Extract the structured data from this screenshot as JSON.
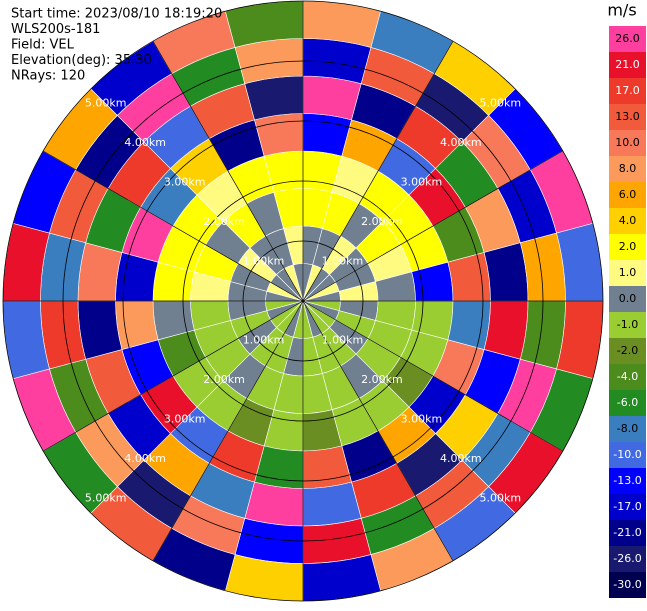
{
  "chart_data": {
    "type": "ppi",
    "annotations": [
      "Start time: 2023/08/10 18:19:20",
      "WLS200s-181",
      "Field: VEL",
      "Elevation(deg): 35.30",
      "NRays: 120"
    ],
    "azimuths": [
      0,
      15,
      30,
      45,
      60,
      75,
      90,
      105,
      120,
      135,
      150,
      165,
      180,
      195,
      210,
      225,
      240,
      255,
      270,
      285,
      300,
      315,
      330,
      345
    ],
    "range_edges": [
      0,
      0.625,
      1.25,
      1.875,
      2.5,
      3.125,
      3.75,
      4.375,
      5
    ],
    "values": [
      [
        0,
        0,
        2,
        2,
        -13,
        26,
        -17,
        8
      ],
      [
        1,
        0,
        2,
        1,
        6,
        -21,
        13,
        -8
      ],
      [
        0,
        1,
        0,
        2,
        -10,
        17,
        -26,
        4
      ],
      [
        0,
        0,
        2,
        2,
        21,
        -6,
        10,
        -13
      ],
      [
        1,
        0,
        1,
        2,
        -4,
        8,
        -17,
        26
      ],
      [
        0,
        1,
        0,
        -13,
        13,
        -21,
        6,
        -10
      ],
      [
        -1,
        0,
        -1,
        -1,
        -8,
        21,
        -4,
        17
      ],
      [
        0,
        -1,
        -1,
        -1,
        10,
        -13,
        26,
        -6
      ],
      [
        -1,
        0,
        -1,
        -2,
        -17,
        4,
        -8,
        21
      ],
      [
        -1,
        -1,
        0,
        -1,
        6,
        -26,
        13,
        -10
      ],
      [
        0,
        -1,
        -1,
        -1,
        -21,
        17,
        -6,
        8
      ],
      [
        -1,
        -1,
        -1,
        -2,
        13,
        -10,
        21,
        -17
      ],
      [
        -1,
        0,
        -1,
        -1,
        -6,
        26,
        -13,
        4
      ],
      [
        0,
        -1,
        -1,
        -2,
        17,
        -8,
        10,
        -21
      ],
      [
        -1,
        -1,
        0,
        -1,
        -10,
        6,
        -26,
        13
      ],
      [
        -1,
        0,
        -1,
        -1,
        21,
        -17,
        8,
        -6
      ],
      [
        0,
        -1,
        -1,
        -4,
        -13,
        13,
        -4,
        26
      ],
      [
        -1,
        0,
        -1,
        0,
        8,
        -21,
        17,
        -10
      ],
      [
        0,
        0,
        1,
        2,
        -17,
        10,
        -8,
        21
      ],
      [
        1,
        0,
        2,
        2,
        26,
        -6,
        13,
        -13
      ],
      [
        0,
        1,
        0,
        2,
        -8,
        17,
        -21,
        6
      ],
      [
        0,
        0,
        2,
        1,
        4,
        -10,
        26,
        -17
      ],
      [
        1,
        0,
        0,
        2,
        -21,
        13,
        -6,
        10
      ],
      [
        0,
        1,
        2,
        2,
        10,
        -26,
        8,
        -4
      ]
    ],
    "rings": [
      {
        "value": 1,
        "label": "1.00km"
      },
      {
        "value": 2,
        "label": "2.00km"
      },
      {
        "value": 3,
        "label": "3.00km"
      },
      {
        "value": 4,
        "label": "4.00km"
      },
      {
        "value": 5,
        "label": "5.00km"
      }
    ],
    "rlim": [
      0,
      5
    ],
    "colorbar_title": "m/s",
    "cticks": [
      {
        "value": 26,
        "label": "26.0"
      },
      {
        "value": 21,
        "label": "21.0"
      },
      {
        "value": 17,
        "label": "17.0"
      },
      {
        "value": 13,
        "label": "13.0"
      },
      {
        "value": 10,
        "label": "10.0"
      },
      {
        "value": 8,
        "label": "8.0"
      },
      {
        "value": 6,
        "label": "6.0"
      },
      {
        "value": 4,
        "label": "4.0"
      },
      {
        "value": 2,
        "label": "2.0"
      },
      {
        "value": 1,
        "label": "1.0"
      },
      {
        "value": 0,
        "label": "0.0"
      },
      {
        "value": -1,
        "label": "-1.0"
      },
      {
        "value": -2,
        "label": "-2.0"
      },
      {
        "value": -4,
        "label": "-4.0"
      },
      {
        "value": -6,
        "label": "-6.0"
      },
      {
        "value": -8,
        "label": "-8.0"
      },
      {
        "value": -10,
        "label": "-10.0"
      },
      {
        "value": -13,
        "label": "-13.0"
      },
      {
        "value": -17,
        "label": "-17.0"
      },
      {
        "value": -21,
        "label": "-21.0"
      },
      {
        "value": -26,
        "label": "-26.0"
      },
      {
        "value": -30,
        "label": "-30.0"
      }
    ],
    "colors": [
      "#ff3fa0",
      "#e8102a",
      "#ee3a2a",
      "#f25a3c",
      "#f8785a",
      "#fb9a5a",
      "#ffa500",
      "#ffd000",
      "#ffff00",
      "#fffa80",
      "#708090",
      "#9acd32",
      "#6b8e23",
      "#4c8c1c",
      "#228b22",
      "#3a7ec0",
      "#4169e1",
      "#0000ff",
      "#0000cd",
      "#00008b",
      "#191970",
      "#000050"
    ]
  }
}
